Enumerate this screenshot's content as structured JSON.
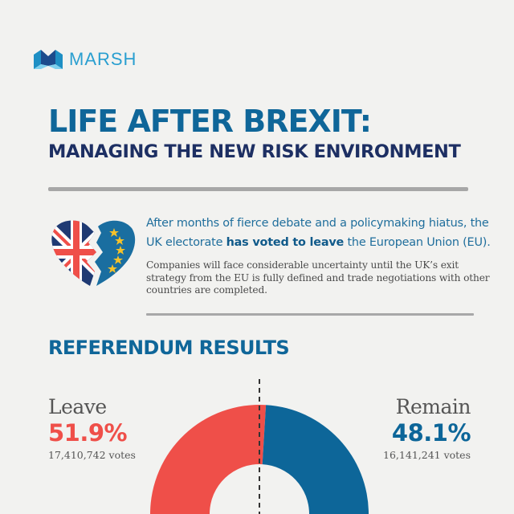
{
  "brand": {
    "name": "MARSH",
    "icon": "marsh-logo-icon",
    "color": "#2a9fd0"
  },
  "header": {
    "title": "LIFE AFTER BREXIT:",
    "subtitle": "MANAGING THE NEW RISK ENVIRONMENT"
  },
  "intro": {
    "icon": "broken-heart-uk-eu-flag-icon",
    "lead_part1": "After months of fierce debate and a policymaking hiatus, the UK electorate ",
    "lead_bold": "has voted to leave",
    "lead_part2": " the European Union (EU).",
    "body": "Companies will face considerable uncertainty until the UK’s exit strategy from the EU is fully defined and trade negotiations with other countries are completed."
  },
  "results": {
    "title": "REFERENDUM RESULTS",
    "leave": {
      "label": "Leave",
      "percent": "51.9%",
      "votes": "17,410,742 votes",
      "color": "#ef4f49"
    },
    "remain": {
      "label": "Remain",
      "percent": "48.1%",
      "votes": "16,141,241 votes",
      "color": "#0d6699"
    }
  },
  "chart_data": {
    "type": "pie",
    "subtype": "half-donut",
    "title": "REFERENDUM RESULTS",
    "categories": [
      "Leave",
      "Remain"
    ],
    "values": [
      51.9,
      48.1
    ],
    "votes": [
      17410742,
      16141241
    ],
    "colors": [
      "#ef4f49",
      "#0d6699"
    ],
    "annotations": [
      "dashed vertical 50% midline"
    ],
    "legend": "side labels (Leave left, Remain right)"
  }
}
